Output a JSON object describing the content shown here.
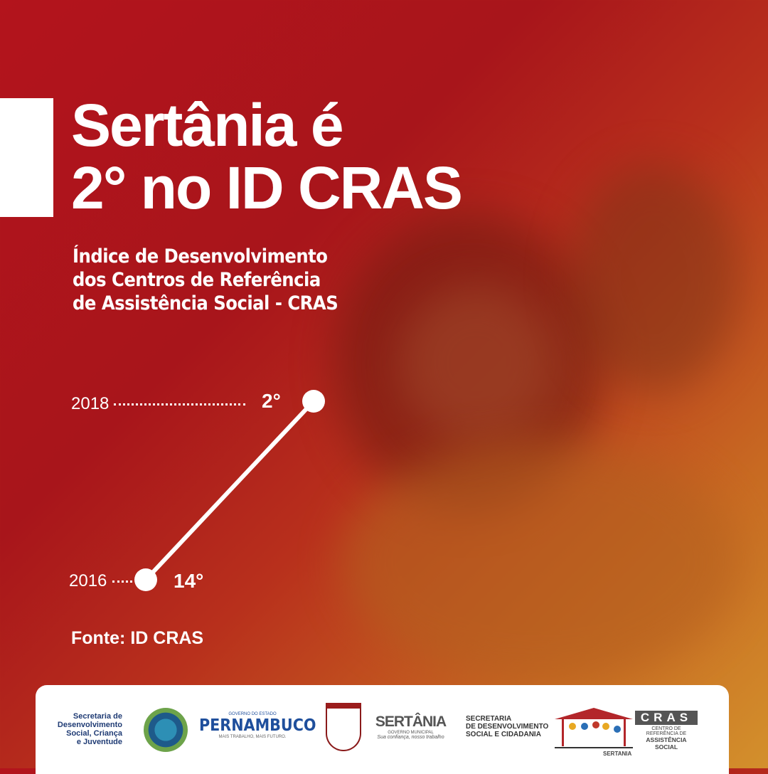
{
  "headline": {
    "line1": "Sertânia é",
    "line2": "2° no ID CRAS"
  },
  "subtitle": {
    "line1": "Índice de Desenvolvimento",
    "line2": "dos Centros de Referência",
    "line3": "de Assistência Social - CRAS"
  },
  "ranking": [
    {
      "year": "2018",
      "rank": "2°"
    },
    {
      "year": "2016",
      "rank": "14°"
    }
  ],
  "source": "Fonte: ID CRAS",
  "footer": {
    "secretaria_estadual": [
      "Secretaria de",
      "Desenvolvimento",
      "Social, Criança",
      "e Juventude"
    ],
    "pernambuco": {
      "top": "GOVERNO DO ESTADO",
      "name": "PERNAMBUCO",
      "slogan": "MAIS TRABALHO, MAIS FUTURO."
    },
    "sertania": {
      "name": "SERTÂNIA",
      "sub": "GOVERNO MUNICIPAL",
      "slogan": "Sua confiança, nosso trabalho"
    },
    "secretaria_municipal": [
      "SECRETARIA",
      "DE DESENVOLVIMENTO",
      "SOCIAL E CIDADANIA"
    ],
    "cras": {
      "name": "CRAS",
      "line1": "CENTRO DE REFERÊNCIA DE",
      "line2": "ASSISTÊNCIA SOCIAL",
      "city": "SERTANIA"
    }
  },
  "colors": {
    "red": "#b3141c",
    "orange": "#d3902c",
    "pernambuco_blue": "#1f4f9c",
    "logo_gray": "#555555"
  }
}
